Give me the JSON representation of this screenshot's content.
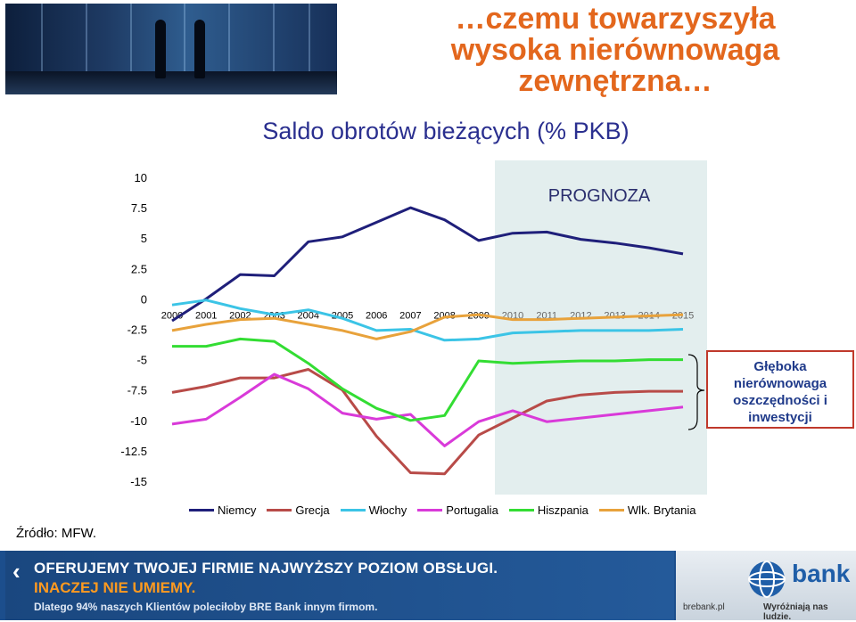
{
  "header": {
    "title_lines": [
      "…czemu towarzyszyła",
      "wysoka nierównowaga",
      "zewnętrzna…"
    ],
    "subtitle": "Saldo obrotów bieżących (% PKB)"
  },
  "forecast_label": "PROGNOZA",
  "callout": {
    "lines": [
      "Głęboka",
      "nierównowaga",
      "oszczędności i",
      "inwestycji"
    ]
  },
  "source": "Źródło: MFW.",
  "chart_data": {
    "type": "line",
    "title": "Saldo obrotów bieżących (% PKB)",
    "x": [
      "2000",
      "2001",
      "2002",
      "2003",
      "2004",
      "2005",
      "2006",
      "2007",
      "2008",
      "2009",
      "2010",
      "2011",
      "2012",
      "2013",
      "2014",
      "2015"
    ],
    "y_ticks": [
      "10",
      "7.5",
      "5",
      "2.5",
      "0",
      "-2.5",
      "-5",
      "-7.5",
      "-10",
      "-12.5",
      "-15"
    ],
    "ylim": [
      -15,
      10
    ],
    "forecast_from": "2010",
    "legend_position": "bottom",
    "grid": false,
    "series": [
      {
        "name": "Niemcy",
        "color": "#1f1f7a",
        "values": [
          -1.8,
          0.0,
          2.0,
          1.9,
          4.7,
          5.1,
          6.3,
          7.5,
          6.5,
          4.8,
          5.4,
          5.5,
          4.9,
          4.6,
          4.2,
          3.7
        ]
      },
      {
        "name": "Grecja",
        "color": "#b84b48",
        "values": [
          -7.7,
          -7.2,
          -6.5,
          -6.5,
          -5.8,
          -7.5,
          -11.3,
          -14.3,
          -14.4,
          -11.2,
          -9.8,
          -8.4,
          -7.9,
          -7.7,
          -7.6,
          -7.6
        ]
      },
      {
        "name": "Włochy",
        "color": "#3bc4e6",
        "values": [
          -0.5,
          -0.1,
          -0.8,
          -1.3,
          -0.9,
          -1.6,
          -2.6,
          -2.5,
          -3.4,
          -3.3,
          -2.8,
          -2.7,
          -2.6,
          -2.6,
          -2.6,
          -2.5
        ]
      },
      {
        "name": "Portugalia",
        "color": "#d93ad9",
        "values": [
          -10.3,
          -9.9,
          -8.1,
          -6.2,
          -7.4,
          -9.4,
          -9.9,
          -9.5,
          -12.1,
          -10.1,
          -9.2,
          -10.1,
          -9.8,
          -9.5,
          -9.2,
          -8.9
        ]
      },
      {
        "name": "Hiszpania",
        "color": "#33dd33",
        "values": [
          -3.9,
          -3.9,
          -3.3,
          -3.5,
          -5.3,
          -7.4,
          -9.0,
          -10.0,
          -9.6,
          -5.1,
          -5.3,
          -5.2,
          -5.1,
          -5.1,
          -5.0,
          -5.0
        ]
      },
      {
        "name": "Wlk. Brytania",
        "color": "#e8a23b",
        "values": [
          -2.6,
          -2.1,
          -1.7,
          -1.6,
          -2.1,
          -2.6,
          -3.3,
          -2.7,
          -1.5,
          -1.3,
          -1.7,
          -1.7,
          -1.6,
          -1.5,
          -1.4,
          -1.3
        ]
      }
    ]
  },
  "banner": {
    "line1": "OFERUJEMY TWOJEJ FIRMIE NAJWYŻSZY POZIOM OBSŁUGI.",
    "line2": "INACZEJ NIE UMIEMY.",
    "line3": "Dlatego 94% naszych Klientów poleciłoby BRE Bank innym firmom.",
    "brand": "bank",
    "url": "brebank.pl",
    "slogan": "Wyróżniają nas ludzie."
  }
}
